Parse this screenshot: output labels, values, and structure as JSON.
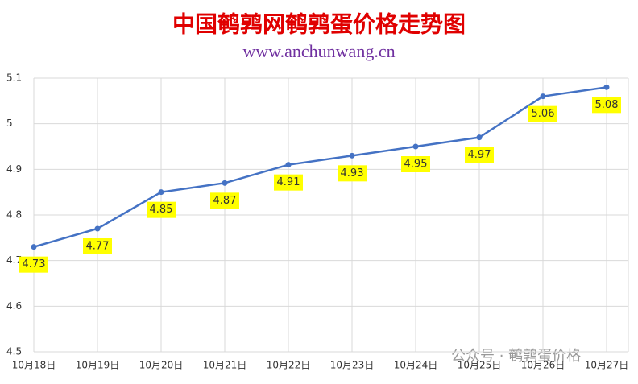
{
  "chart_data": {
    "type": "line",
    "title": "中国鹌鹑网鹌鹑蛋价格走势图",
    "subtitle": "www.anchunwang.cn",
    "categories": [
      "10月18日",
      "10月19日",
      "10月20日",
      "10月21日",
      "10月22日",
      "10月23日",
      "10月24日",
      "10月25日",
      "10月26日",
      "10月27日"
    ],
    "values": [
      4.73,
      4.77,
      4.85,
      4.87,
      4.91,
      4.93,
      4.95,
      4.97,
      5.06,
      5.08
    ],
    "color": "#4472c4",
    "ylim": [
      4.5,
      5.1
    ],
    "yticks": [
      4.5,
      4.6,
      4.7,
      4.8,
      4.9,
      5,
      5.1
    ],
    "grid": true,
    "watermark": "公众号 · 鹌鹑蛋价格"
  }
}
